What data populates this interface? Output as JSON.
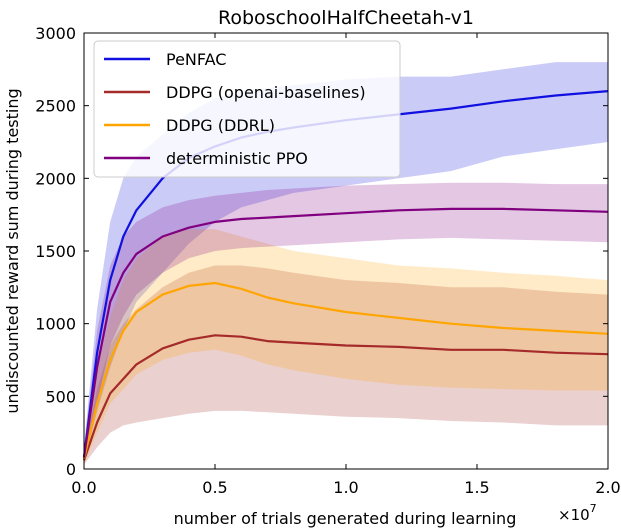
{
  "chart_data": {
    "type": "line",
    "title": "RoboschoolHalfCheetah-v1",
    "xlabel": "number of trials generated during learning",
    "ylabel": "undiscounted reward sum during testing",
    "x_multiplier": "×10",
    "x_multiplier_exp": "7",
    "xlim": [
      0,
      2.0
    ],
    "ylim": [
      0,
      3000
    ],
    "xticks": [
      0.0,
      0.5,
      1.0,
      1.5,
      2.0
    ],
    "xtick_labels": [
      "0.0",
      "0.5",
      "1.0",
      "1.5",
      "2.0"
    ],
    "yticks": [
      0,
      500,
      1000,
      1500,
      2000,
      2500,
      3000
    ],
    "ytick_labels": [
      "0",
      "500",
      "1000",
      "1500",
      "2000",
      "2500",
      "3000"
    ],
    "grid": false,
    "legend_position": "top-left",
    "x": [
      0.0,
      0.05,
      0.1,
      0.15,
      0.2,
      0.3,
      0.4,
      0.5,
      0.6,
      0.7,
      0.8,
      1.0,
      1.2,
      1.4,
      1.6,
      1.8,
      2.0
    ],
    "series": [
      {
        "name": "PeNFAC",
        "color": "#1010e0",
        "values": [
          80,
          800,
          1300,
          1600,
          1780,
          2000,
          2140,
          2220,
          2280,
          2320,
          2350,
          2400,
          2440,
          2480,
          2530,
          2570,
          2600
        ],
        "lower": [
          40,
          400,
          700,
          950,
          1150,
          1350,
          1550,
          1700,
          1800,
          1850,
          1900,
          1950,
          2000,
          2050,
          2150,
          2200,
          2250
        ],
        "upper": [
          150,
          1100,
          1700,
          2000,
          2150,
          2300,
          2450,
          2550,
          2600,
          2620,
          2640,
          2680,
          2700,
          2700,
          2750,
          2800,
          2800
        ]
      },
      {
        "name": "DDPG (openai-baselines)",
        "color": "#a52a2a",
        "values": [
          60,
          320,
          520,
          620,
          720,
          830,
          890,
          920,
          910,
          880,
          870,
          850,
          840,
          820,
          820,
          800,
          790
        ],
        "lower": [
          30,
          150,
          250,
          300,
          320,
          350,
          380,
          400,
          400,
          390,
          380,
          360,
          350,
          330,
          320,
          300,
          300
        ],
        "upper": [
          100,
          550,
          850,
          1000,
          1100,
          1250,
          1350,
          1400,
          1400,
          1380,
          1350,
          1300,
          1280,
          1250,
          1250,
          1220,
          1200
        ]
      },
      {
        "name": "DDPG (DDRL)",
        "color": "#ffa500",
        "values": [
          70,
          450,
          750,
          950,
          1080,
          1200,
          1260,
          1280,
          1240,
          1180,
          1140,
          1080,
          1040,
          1000,
          970,
          950,
          930
        ],
        "lower": [
          30,
          250,
          450,
          550,
          650,
          750,
          800,
          820,
          780,
          720,
          680,
          620,
          580,
          560,
          550,
          540,
          540
        ],
        "upper": [
          120,
          700,
          1050,
          1300,
          1450,
          1600,
          1650,
          1650,
          1600,
          1550,
          1500,
          1450,
          1400,
          1380,
          1350,
          1330,
          1300
        ]
      },
      {
        "name": "deterministic PPO",
        "color": "#800080",
        "values": [
          80,
          700,
          1150,
          1350,
          1480,
          1600,
          1660,
          1700,
          1720,
          1730,
          1740,
          1760,
          1780,
          1790,
          1790,
          1780,
          1770
        ],
        "lower": [
          40,
          450,
          850,
          1050,
          1200,
          1350,
          1450,
          1500,
          1520,
          1530,
          1540,
          1560,
          1580,
          1590,
          1580,
          1570,
          1560
        ],
        "upper": [
          140,
          950,
          1400,
          1600,
          1700,
          1800,
          1850,
          1880,
          1900,
          1920,
          1930,
          1950,
          1960,
          1970,
          1970,
          1960,
          1960
        ]
      }
    ]
  }
}
